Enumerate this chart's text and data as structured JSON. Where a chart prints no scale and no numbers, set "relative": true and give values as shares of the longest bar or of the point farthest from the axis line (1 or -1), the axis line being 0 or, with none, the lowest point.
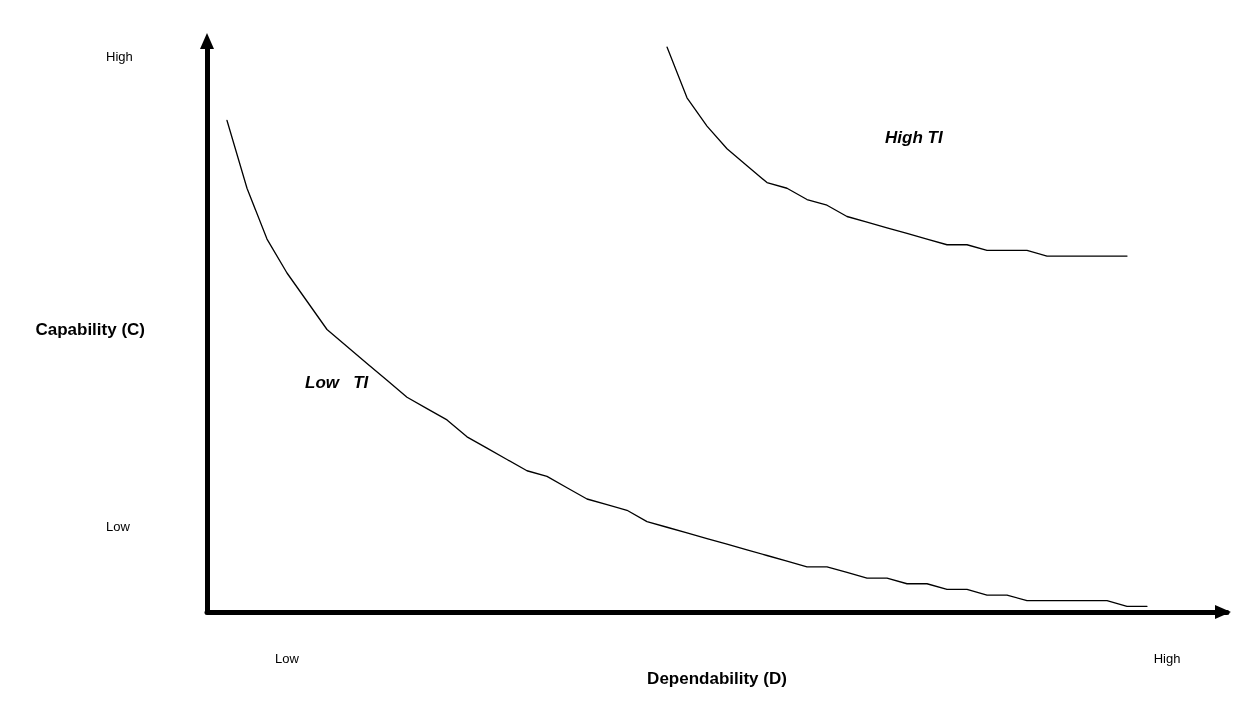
{
  "chart_data": {
    "type": "line",
    "relative": true,
    "xlabel": "Dependability (D)",
    "ylabel": "Capability (C)",
    "categories": [
      null,
      null,
      null,
      null,
      "Low",
      null,
      null,
      null,
      null,
      null,
      null,
      null,
      null,
      null,
      null,
      null,
      null,
      null,
      null,
      null,
      null,
      null,
      null,
      null,
      null,
      null,
      null,
      null,
      null,
      null,
      null,
      null,
      null,
      null,
      null,
      null,
      null,
      null,
      null,
      null,
      null,
      null,
      null,
      null,
      null,
      null,
      null,
      null,
      "High",
      null,
      null,
      null
    ],
    "series": [
      {
        "color": "#000000",
        "values": [
          null,
          0.87,
          0.75,
          0.66,
          0.6,
          0.55,
          0.5,
          0.47,
          0.44,
          0.41,
          0.38,
          0.36,
          0.34,
          0.31,
          0.29,
          0.27,
          0.25,
          0.24,
          0.22,
          0.2,
          0.19,
          0.18,
          0.16,
          0.15,
          0.14,
          0.13,
          0.12,
          0.11,
          0.1,
          0.09,
          0.08,
          0.08,
          0.07,
          0.06,
          0.06,
          0.05,
          0.05,
          0.04,
          0.04,
          0.03,
          0.03,
          0.02,
          0.02,
          0.02,
          0.02,
          0.02,
          0.01,
          0.01,
          null,
          null,
          null,
          null
        ]
      },
      {
        "color": "#000000",
        "values": [
          null,
          null,
          null,
          null,
          null,
          null,
          null,
          null,
          null,
          null,
          null,
          null,
          null,
          null,
          null,
          null,
          null,
          null,
          null,
          null,
          null,
          null,
          null,
          1,
          0.91,
          0.86,
          0.82,
          0.79,
          0.76,
          0.75,
          0.73,
          0.72,
          0.7,
          0.69,
          0.68,
          0.67,
          0.66,
          0.65,
          0.65,
          0.64,
          0.64,
          0.64,
          0.63,
          0.63,
          0.63,
          0.63,
          0.63,
          null,
          null,
          null,
          null,
          null
        ]
      }
    ],
    "annotations": [
      "High",
      "Low",
      "High TI",
      "Low   TI"
    ],
    "line_style": "solid",
    "marker": "none"
  }
}
